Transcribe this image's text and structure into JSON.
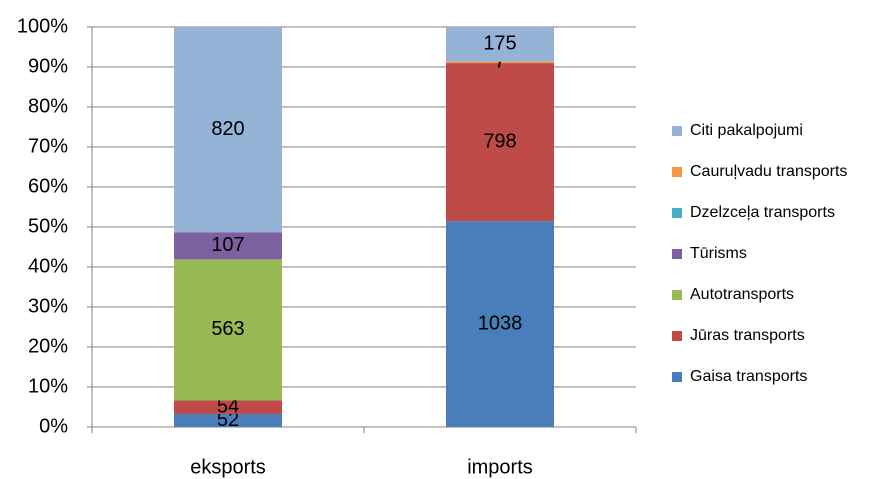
{
  "chart_data": {
    "type": "stacked_percent_bar",
    "categories": [
      "eksports",
      "imports"
    ],
    "series": [
      {
        "name": "Gaisa transports",
        "color": "#4a7ebb",
        "values": [
          52,
          1038
        ]
      },
      {
        "name": "Jūras transports",
        "color": "#be4b48",
        "values": [
          54,
          798
        ]
      },
      {
        "name": "Autotransports",
        "color": "#98b954",
        "values": [
          563,
          null
        ]
      },
      {
        "name": "Tūrisms",
        "color": "#7d60a0",
        "values": [
          107,
          null
        ]
      },
      {
        "name": "Dzelzceļa transports",
        "color": "#4bacc6",
        "values": [
          null,
          null
        ]
      },
      {
        "name": "Cauruļvadu transports",
        "color": "#f79646",
        "values": [
          null,
          7
        ]
      },
      {
        "name": "Citi pakalpojumi",
        "color": "#95b3d7",
        "values": [
          820,
          175
        ]
      }
    ],
    "ylim": [
      0,
      100
    ],
    "yticks": [
      {
        "value": 0,
        "label": "0%"
      },
      {
        "value": 10,
        "label": "10%"
      },
      {
        "value": 20,
        "label": "20%"
      },
      {
        "value": 30,
        "label": "30%"
      },
      {
        "value": 40,
        "label": "40%"
      },
      {
        "value": 50,
        "label": "50%"
      },
      {
        "value": 60,
        "label": "60%"
      },
      {
        "value": 70,
        "label": "70%"
      },
      {
        "value": 80,
        "label": "80%"
      },
      {
        "value": 90,
        "label": "90%"
      },
      {
        "value": 100,
        "label": "100%"
      }
    ],
    "grid": true,
    "legend": "right"
  }
}
